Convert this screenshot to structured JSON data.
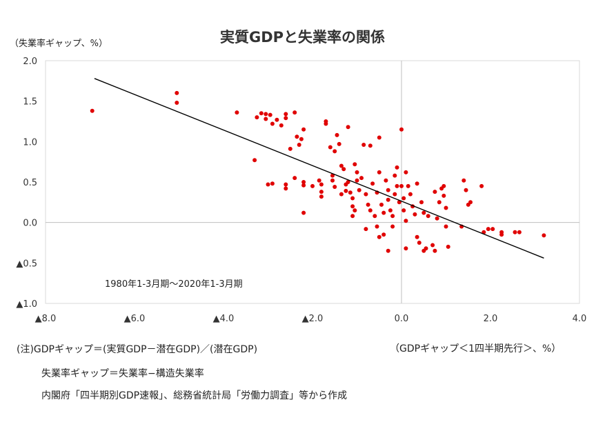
{
  "chart_data": {
    "type": "scatter",
    "title": "実質GDPと失業率の関係",
    "ylabel": "（失業率ギャップ、%）",
    "xlabel": "（GDPギャップ＜1四半期先行＞、%）",
    "xlim": [
      -8.0,
      4.0
    ],
    "ylim": [
      -1.0,
      2.0
    ],
    "x_ticks": [
      {
        "value": -8.0,
        "label": "▲8.0"
      },
      {
        "value": -6.0,
        "label": "▲6.0"
      },
      {
        "value": -4.0,
        "label": "▲4.0"
      },
      {
        "value": -2.0,
        "label": "▲2.0"
      },
      {
        "value": 0.0,
        "label": "0.0"
      },
      {
        "value": 2.0,
        "label": "2.0"
      },
      {
        "value": 4.0,
        "label": "4.0"
      }
    ],
    "y_ticks": [
      {
        "value": 2.0,
        "label": "2.0"
      },
      {
        "value": 1.5,
        "label": "1.5"
      },
      {
        "value": 1.0,
        "label": "1.0"
      },
      {
        "value": 0.5,
        "label": "0.5"
      },
      {
        "value": 0.0,
        "label": "0.0"
      },
      {
        "value": -0.5,
        "label": "▲0.5"
      },
      {
        "value": -1.0,
        "label": "▲1.0"
      }
    ],
    "grid": false,
    "marker_color": "#e00000",
    "trendline": {
      "x": [
        -6.9,
        3.2
      ],
      "y": [
        1.78,
        -0.44
      ],
      "color": "#000000"
    },
    "annotation": "1980年1-3月期～2020年1-3月期",
    "points": [
      [
        -6.95,
        1.38
      ],
      [
        -5.05,
        1.6
      ],
      [
        -5.05,
        1.48
      ],
      [
        -3.7,
        1.36
      ],
      [
        -3.3,
        0.77
      ],
      [
        -3.25,
        1.3
      ],
      [
        -3.15,
        1.35
      ],
      [
        -3.05,
        1.34
      ],
      [
        -3.05,
        1.28
      ],
      [
        -2.95,
        1.33
      ],
      [
        -2.9,
        1.22
      ],
      [
        -2.8,
        1.27
      ],
      [
        -2.7,
        1.2
      ],
      [
        -2.6,
        1.34
      ],
      [
        -2.6,
        1.29
      ],
      [
        -2.5,
        0.91
      ],
      [
        -2.4,
        1.36
      ],
      [
        -2.35,
        1.06
      ],
      [
        -2.3,
        0.96
      ],
      [
        -2.25,
        1.03
      ],
      [
        -2.2,
        1.15
      ],
      [
        -3.0,
        0.47
      ],
      [
        -2.9,
        0.48
      ],
      [
        -2.6,
        0.47
      ],
      [
        -2.6,
        0.42
      ],
      [
        -2.4,
        0.55
      ],
      [
        -2.2,
        0.5
      ],
      [
        -2.2,
        0.46
      ],
      [
        -2.2,
        0.12
      ],
      [
        -2.0,
        0.45
      ],
      [
        -1.85,
        0.52
      ],
      [
        -1.8,
        0.47
      ],
      [
        -1.8,
        0.38
      ],
      [
        -1.8,
        0.32
      ],
      [
        -1.7,
        1.25
      ],
      [
        -1.7,
        1.22
      ],
      [
        -1.6,
        0.93
      ],
      [
        -1.55,
        0.58
      ],
      [
        -1.55,
        0.52
      ],
      [
        -1.5,
        0.44
      ],
      [
        -1.5,
        0.88
      ],
      [
        -1.45,
        1.08
      ],
      [
        -1.4,
        0.97
      ],
      [
        -1.35,
        0.7
      ],
      [
        -1.3,
        0.66
      ],
      [
        -1.25,
        0.47
      ],
      [
        -1.25,
        0.39
      ],
      [
        -1.2,
        1.18
      ],
      [
        -1.2,
        0.5
      ],
      [
        -1.15,
        0.37
      ],
      [
        -1.1,
        0.3
      ],
      [
        -1.1,
        0.2
      ],
      [
        -1.05,
        0.72
      ],
      [
        -1.0,
        0.62
      ],
      [
        -1.0,
        0.52
      ],
      [
        -0.95,
        0.4
      ],
      [
        -0.9,
        0.55
      ],
      [
        -0.85,
        0.96
      ],
      [
        -0.8,
        0.35
      ],
      [
        -0.75,
        0.22
      ],
      [
        -0.7,
        0.95
      ],
      [
        -0.65,
        0.48
      ],
      [
        -0.6,
        0.08
      ],
      [
        -0.55,
        0.37
      ],
      [
        -0.55,
        -0.05
      ],
      [
        -0.5,
        1.05
      ],
      [
        -0.5,
        0.62
      ],
      [
        -0.45,
        0.22
      ],
      [
        -0.4,
        0.12
      ],
      [
        -0.4,
        -0.15
      ],
      [
        -0.35,
        0.52
      ],
      [
        -0.3,
        0.4
      ],
      [
        -0.3,
        0.28
      ],
      [
        -0.25,
        0.15
      ],
      [
        -0.2,
        0.08
      ],
      [
        -0.2,
        -0.05
      ],
      [
        -0.15,
        0.35
      ],
      [
        -0.1,
        0.45
      ],
      [
        -0.1,
        0.68
      ],
      [
        -0.05,
        0.25
      ],
      [
        0.0,
        1.15
      ],
      [
        0.0,
        0.45
      ],
      [
        0.05,
        0.3
      ],
      [
        0.05,
        0.15
      ],
      [
        0.1,
        0.62
      ],
      [
        0.1,
        0.02
      ],
      [
        0.15,
        0.45
      ],
      [
        0.2,
        0.35
      ],
      [
        0.25,
        0.2
      ],
      [
        0.3,
        0.1
      ],
      [
        0.35,
        0.48
      ],
      [
        0.4,
        -0.25
      ],
      [
        0.45,
        0.25
      ],
      [
        0.5,
        0.12
      ],
      [
        0.55,
        -0.32
      ],
      [
        0.6,
        0.08
      ],
      [
        0.7,
        -0.28
      ],
      [
        0.75,
        0.38
      ],
      [
        0.8,
        0.05
      ],
      [
        0.85,
        0.25
      ],
      [
        0.9,
        0.42
      ],
      [
        0.95,
        0.33
      ],
      [
        1.0,
        -0.05
      ],
      [
        1.0,
        0.18
      ],
      [
        1.05,
        -0.3
      ],
      [
        1.4,
        0.52
      ],
      [
        1.45,
        0.4
      ],
      [
        1.5,
        0.22
      ],
      [
        1.55,
        0.25
      ],
      [
        1.8,
        0.45
      ],
      [
        1.85,
        -0.12
      ],
      [
        1.95,
        -0.08
      ],
      [
        2.05,
        -0.08
      ],
      [
        2.25,
        -0.15
      ],
      [
        2.25,
        -0.12
      ],
      [
        2.55,
        -0.12
      ],
      [
        2.65,
        -0.12
      ],
      [
        3.2,
        -0.16
      ],
      [
        -1.35,
        0.35
      ],
      [
        -1.05,
        0.15
      ],
      [
        -0.8,
        -0.08
      ],
      [
        -0.5,
        -0.18
      ],
      [
        -0.3,
        -0.35
      ],
      [
        0.1,
        -0.32
      ],
      [
        0.5,
        -0.35
      ],
      [
        0.95,
        0.45
      ],
      [
        1.35,
        -0.05
      ],
      [
        -0.7,
        0.15
      ],
      [
        -1.1,
        0.08
      ],
      [
        -0.15,
        0.58
      ],
      [
        0.35,
        -0.18
      ],
      [
        0.75,
        -0.35
      ]
    ]
  },
  "notes": {
    "line1": "(注)GDPギャップ＝(実質GDP－潜在GDP)／(潜在GDP)",
    "line2": "失業率ギャップ＝失業率−構造失業率",
    "line3": "内閣府「四半期別GDP速報」、総務省統計局「労働力調査」等から作成"
  }
}
